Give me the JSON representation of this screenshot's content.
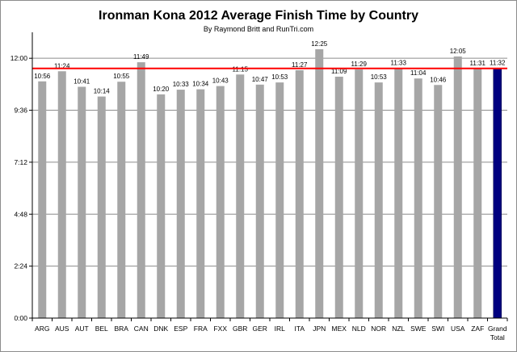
{
  "chart_data": {
    "type": "bar",
    "title": "Ironman Kona 2012 Average Finish Time by Country",
    "subtitle": "By Raymond Britt and RunTri.com",
    "xlabel": "",
    "ylabel": "",
    "categories": [
      "ARG",
      "AUS",
      "AUT",
      "BEL",
      "BRA",
      "CAN",
      "DNK",
      "ESP",
      "FRA",
      "FXX",
      "GBR",
      "GER",
      "IRL",
      "ITA",
      "JPN",
      "MEX",
      "NLD",
      "NOR",
      "NZL",
      "SWE",
      "SWI",
      "USA",
      "ZAF",
      "Grand Total"
    ],
    "values_minutes": [
      656,
      684,
      641,
      614,
      655,
      709,
      620,
      633,
      634,
      643,
      675,
      647,
      653,
      687,
      745,
      669,
      689,
      653,
      693,
      664,
      646,
      725,
      691,
      692
    ],
    "data_labels": [
      "10:56",
      "11:24",
      "10:41",
      "10:14",
      "10:55",
      "11:49",
      "10:20",
      "10:33",
      "10:34",
      "10:43",
      "11:15",
      "10:47",
      "10:53",
      "11:27",
      "12:25",
      "11:09",
      "11:29",
      "10:53",
      "11:33",
      "11:04",
      "10:46",
      "12:05",
      "11:31",
      "11:32"
    ],
    "y_ticks_minutes": [
      0,
      144,
      288,
      432,
      576,
      720
    ],
    "y_tick_labels": [
      "0:00",
      "2:24",
      "4:48",
      "7:12",
      "9:36",
      "12:00"
    ],
    "ylim_minutes": [
      0,
      792
    ],
    "reference_line_minutes": 692,
    "grid": true,
    "legend": "none",
    "colors": {
      "bar": "#a6a6a6",
      "highlight_bar": "#00007f",
      "reference_line": "#ff0000",
      "grid": "#8c8c8c"
    }
  }
}
